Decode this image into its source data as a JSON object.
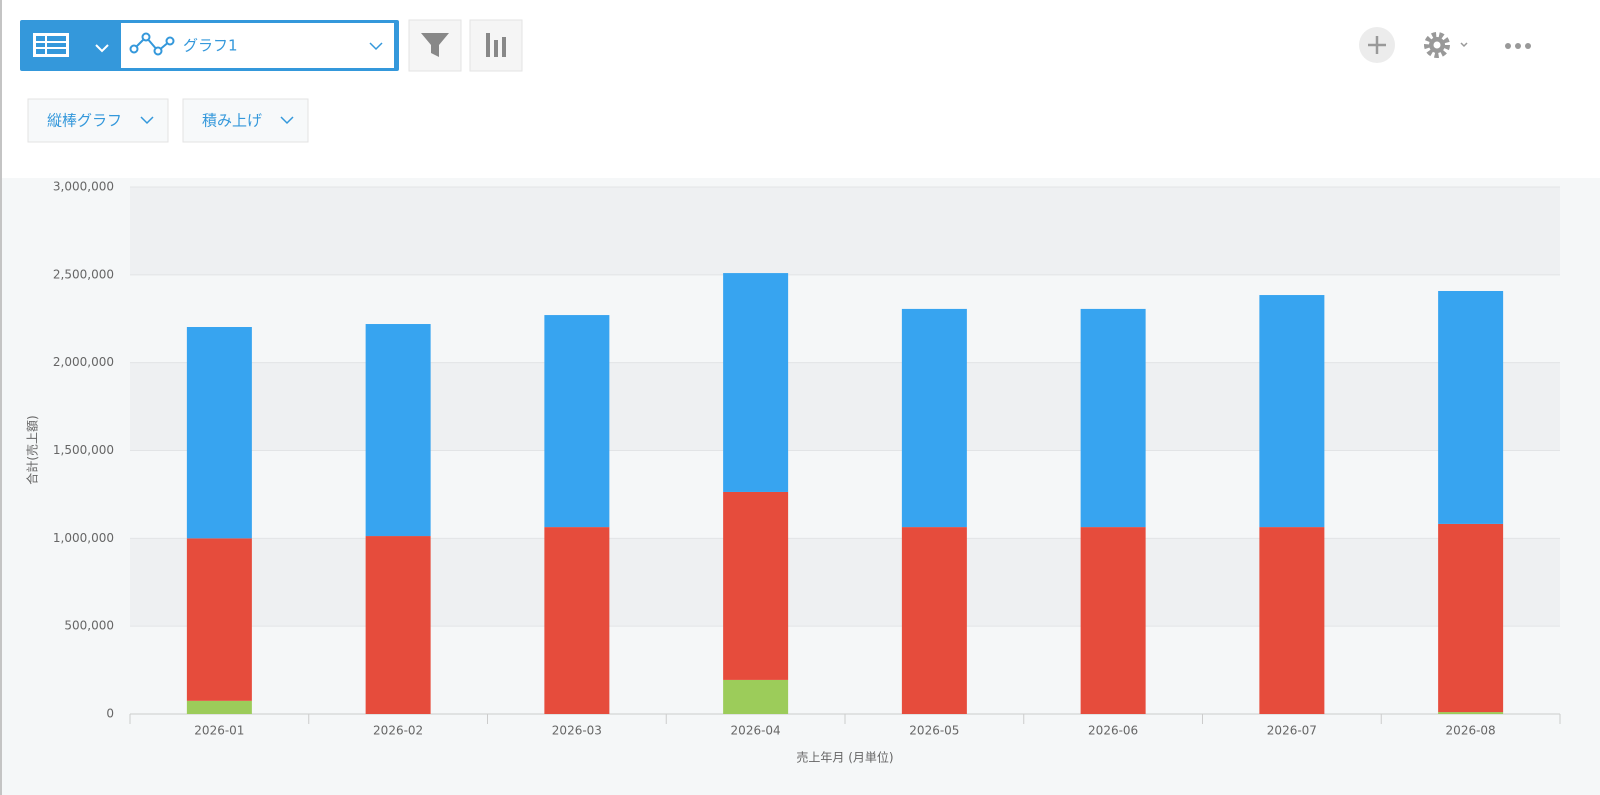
{
  "toolbar": {
    "view_name": "グラフ1",
    "chart_type": "縦棒グラフ",
    "stack_mode": "積み上げ"
  },
  "chart_data": {
    "type": "bar",
    "stacked": true,
    "y_label": "合計(売上額)",
    "x_label": "売上年月 (月単位)",
    "categories": [
      "2026-01",
      "2026-02",
      "2026-03",
      "2026-04",
      "2026-05",
      "2026-06",
      "2026-07",
      "2026-08"
    ],
    "series": [
      {
        "color": "#9ccc5a",
        "values": [
          75000,
          0,
          0,
          194000,
          0,
          0,
          0,
          11000
        ]
      },
      {
        "color": "#e64c3c",
        "values": [
          925000,
          1013000,
          1064000,
          1070000,
          1064000,
          1064000,
          1064000,
          1071000
        ]
      },
      {
        "color": "#37a4f0",
        "values": [
          1203000,
          1207000,
          1207000,
          1246000,
          1242000,
          1242000,
          1321000,
          1326000
        ]
      }
    ],
    "ylim": [
      0,
      3000000
    ],
    "yticks": [
      0,
      {
        "value": 500000,
        "label": "500,000"
      },
      {
        "value": 1000000,
        "label": "1,000,000"
      },
      {
        "value": 1500000,
        "label": "1,500,000"
      },
      {
        "value": 2000000,
        "label": "2,000,000"
      },
      {
        "value": 2500000,
        "label": "2,500,000"
      },
      {
        "value": 3000000,
        "label": "3,000,000"
      }
    ],
    "grid": true
  }
}
